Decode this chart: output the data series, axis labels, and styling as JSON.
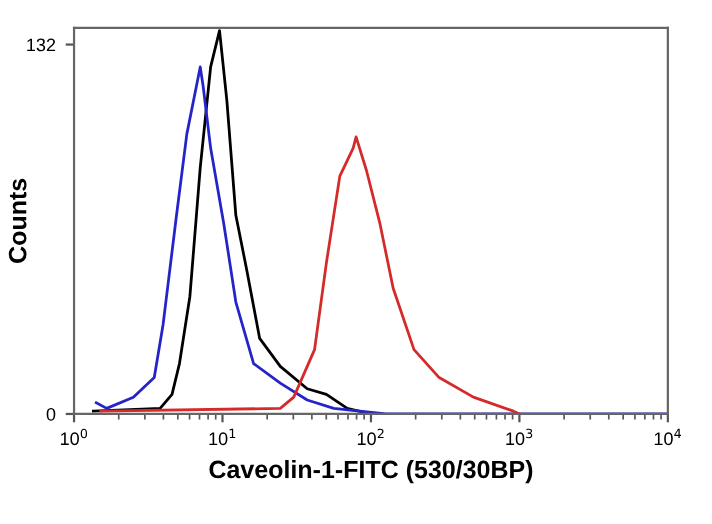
{
  "chart_data": {
    "type": "line",
    "xlabel": "Caveolin-1-FITC (530/30BP)",
    "ylabel": "Counts",
    "log": "x",
    "grid": false,
    "xlim": [
      1,
      10000
    ],
    "ylim": [
      0,
      138
    ],
    "xticks": [
      {
        "value": 1,
        "label": "10$^{0}$"
      },
      {
        "value": 10,
        "label": "10$^{1}$"
      },
      {
        "value": 100,
        "label": "10$^{2}$"
      },
      {
        "value": 1000,
        "label": "10$^{3}$"
      },
      {
        "value": 10000,
        "label": "10$^{4}$"
      }
    ],
    "yticks": [
      0,
      132
    ],
    "series": [
      {
        "color": "#000000",
        "x": [
          1.35,
          3.8,
          4.57,
          5.13,
          6.03,
          7.08,
          8.32,
          9.55,
          10.7,
          12.3,
          14.5,
          17.8,
          24.5,
          37.2,
          50.1,
          69.2,
          100
        ],
        "values": [
          1,
          2,
          7,
          18,
          42,
          88,
          124,
          137,
          112,
          71,
          52,
          27,
          17,
          9,
          7,
          2,
          0
        ]
      },
      {
        "color": "#2424c8",
        "x": [
          1.41,
          1.66,
          2.51,
          3.47,
          3.98,
          4.9,
          5.75,
          7.08,
          7.41,
          8.32,
          10.2,
          12.3,
          16.2,
          24.5,
          37.2,
          56.2,
          126,
          10000
        ],
        "values": [
          4,
          2,
          6,
          13,
          32,
          71,
          100,
          124,
          117,
          95,
          68,
          40,
          18,
          11,
          5,
          2,
          0,
          0
        ]
      },
      {
        "color": "#d42a2a",
        "x": [
          1.51,
          24.5,
          30.2,
          41.7,
          50.1,
          61.7,
          75.9,
          79.4,
          93.3,
          115,
          141,
          195,
          288,
          490,
          912,
          1000
        ],
        "values": [
          1,
          2,
          6,
          23,
          54,
          85,
          95,
          99,
          87,
          68,
          45,
          23,
          13,
          6,
          1,
          0
        ]
      }
    ]
  }
}
